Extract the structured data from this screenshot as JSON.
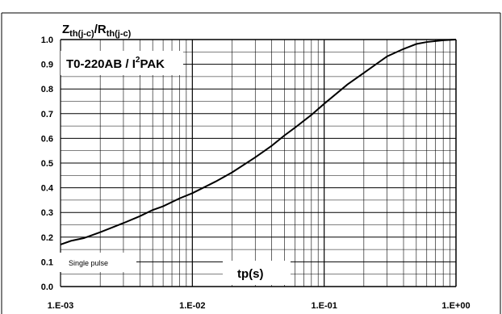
{
  "chart_data": {
    "type": "line",
    "title": "",
    "ylabel_main": "Z",
    "ylabel_main_sub": "th(j-c)",
    "ylabel_sep": "/",
    "ylabel_den": "R",
    "ylabel_den_sub": "th(j-c)",
    "package_pre": "T0-220AB / I",
    "package_sup": "2",
    "package_post": "PAK",
    "xlabel": "tp(s)",
    "note": "Single pulse",
    "x_scale": "log",
    "xlim": [
      0.001,
      1
    ],
    "ylim": [
      0,
      1
    ],
    "grid": true,
    "x_ticks": [
      "1.E-03",
      "1.E-02",
      "1.E-01",
      "1.E+00"
    ],
    "y_ticks": [
      "0.0",
      "0.1",
      "0.2",
      "0.3",
      "0.4",
      "0.5",
      "0.6",
      "0.7",
      "0.8",
      "0.9",
      "1.0"
    ],
    "series": [
      {
        "x": [
          0.001,
          0.0012,
          0.0015,
          0.002,
          0.003,
          0.004,
          0.005,
          0.006,
          0.008,
          0.01,
          0.015,
          0.02,
          0.03,
          0.04,
          0.05,
          0.06,
          0.08,
          0.1,
          0.15,
          0.2,
          0.3,
          0.4,
          0.5,
          0.6,
          0.8,
          1.0
        ],
        "y": [
          0.17,
          0.185,
          0.196,
          0.22,
          0.257,
          0.285,
          0.31,
          0.325,
          0.357,
          0.378,
          0.425,
          0.462,
          0.523,
          0.57,
          0.612,
          0.643,
          0.695,
          0.74,
          0.818,
          0.865,
          0.932,
          0.962,
          0.982,
          0.99,
          0.997,
          1.0
        ]
      }
    ]
  }
}
